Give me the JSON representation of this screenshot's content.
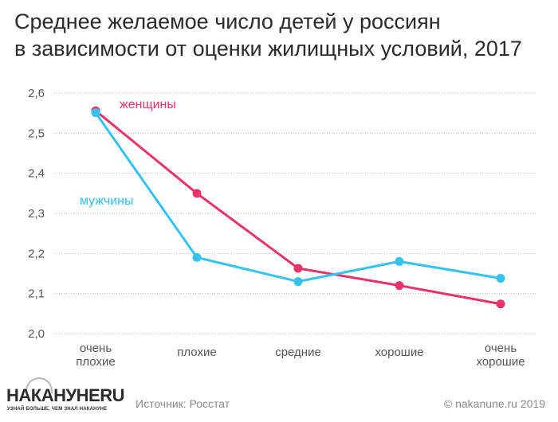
{
  "title": {
    "line1": "Среднее желаемое число детей у россиян",
    "line2": "в зависимости от оценки жилищных условий, 2017"
  },
  "footer": {
    "source": "Источник: Росстат",
    "copyright": "© nakanune.ru 2019",
    "logo_text": "НАКАНУНЕ",
    "logo_suffix": "RU",
    "logo_tagline": "УЗНАЙ БОЛЬШЕ, ЧЕМ ЗНАЛ НАКАНУНЕ"
  },
  "chart_data": {
    "type": "line",
    "title": "Среднее желаемое число детей у россиян в зависимости от оценки жилищных условий, 2017",
    "categories": [
      [
        "очень",
        "плохие"
      ],
      [
        "плохие"
      ],
      [
        "средние"
      ],
      [
        "хорошие"
      ],
      [
        "очень",
        "хорошие"
      ]
    ],
    "ylim": [
      2.0,
      2.6
    ],
    "yticks": [
      "2,0",
      "2,1",
      "2,2",
      "2,3",
      "2,4",
      "2,5",
      "2,6"
    ],
    "grid": true,
    "series": [
      {
        "name": "женщины",
        "color": "#e8336a",
        "values": [
          2.556,
          2.35,
          2.163,
          2.12,
          2.074
        ]
      },
      {
        "name": "мужчины",
        "color": "#35c3ee",
        "values": [
          2.551,
          2.19,
          2.13,
          2.18,
          2.138
        ]
      }
    ]
  }
}
